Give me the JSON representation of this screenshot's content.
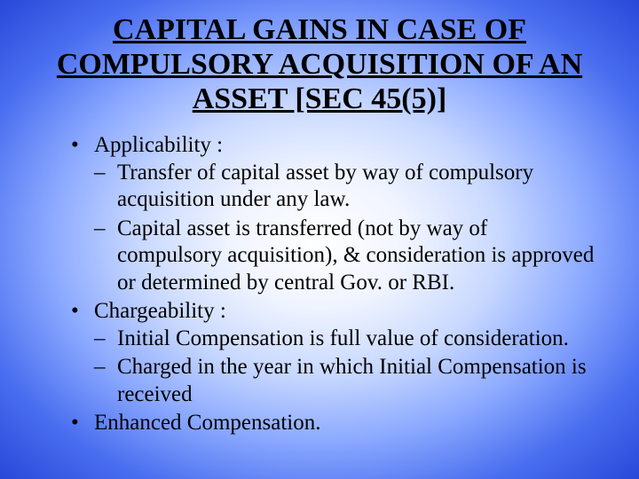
{
  "title_fontsize": 34,
  "body_fontsize": 25,
  "title_lines": "CAPITAL GAINS IN CASE OF COMPULSORY ACQUISITION OF AN ASSET [SEC 45(5)]",
  "bullets": [
    {
      "label": "Applicability :",
      "sub": [
        "Transfer of capital asset by way of compulsory acquisition under any law.",
        "Capital asset is transferred (not by way of compulsory acquisition), & consideration is approved or determined by central Gov. or RBI."
      ]
    },
    {
      "label": "Chargeability :",
      "sub": [
        "Initial Compensation is full value of consideration.",
        "Charged in the year in which Initial Compensation is received"
      ]
    },
    {
      "label": "Enhanced Compensation.",
      "sub": []
    }
  ],
  "colors": {
    "text": "#000000",
    "bg_center": "#ffffff",
    "bg_edge": "#2848d8"
  }
}
